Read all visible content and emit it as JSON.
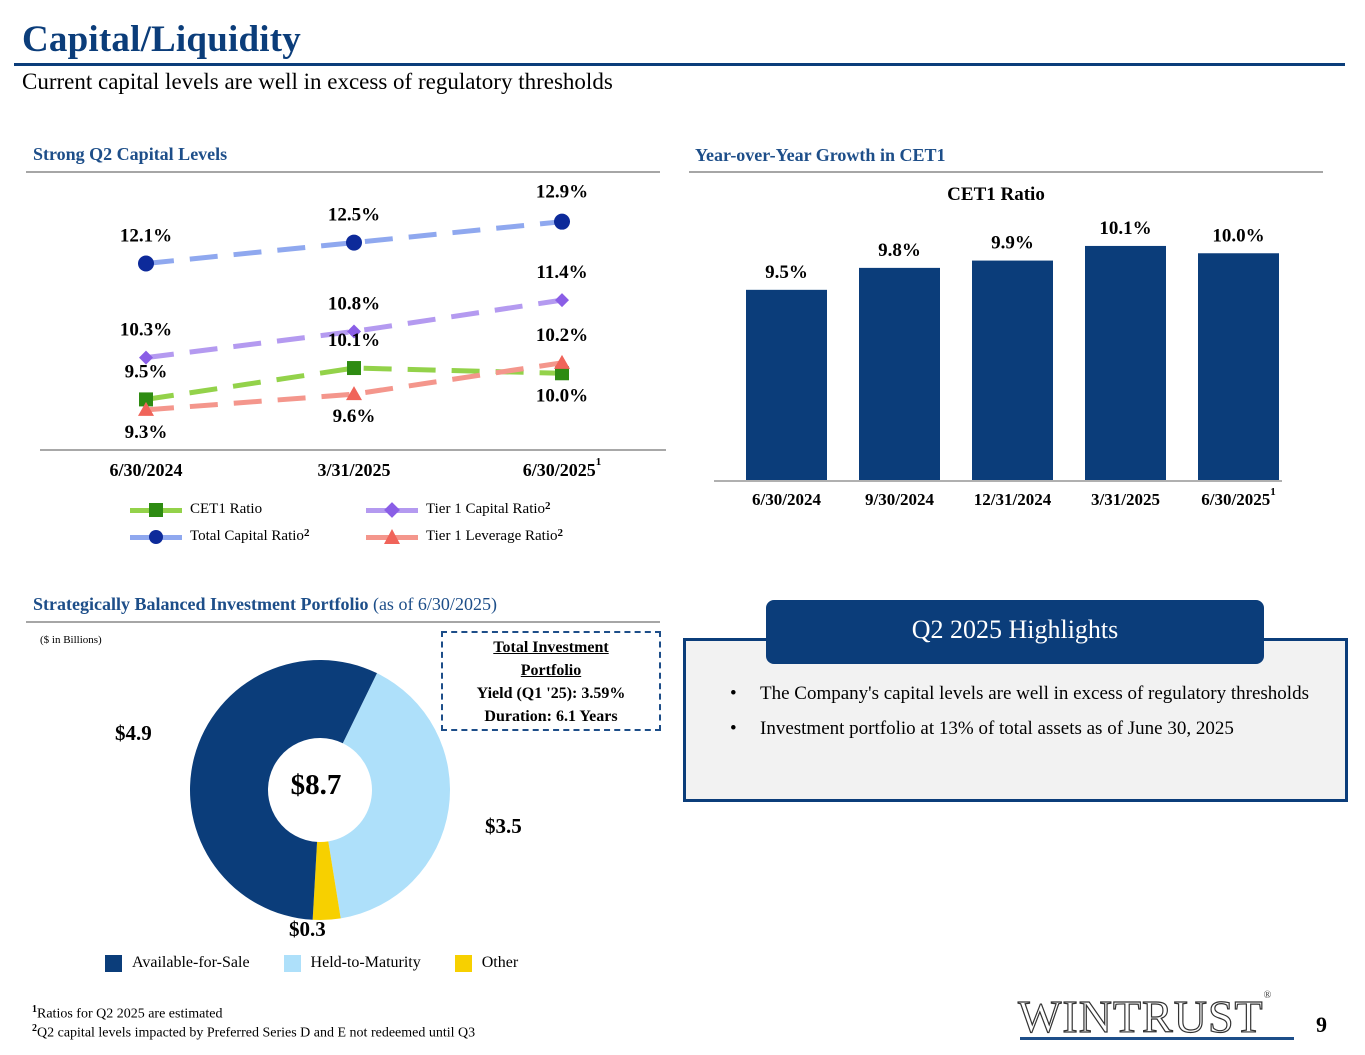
{
  "header": {
    "title": "Capital/Liquidity",
    "subtitle": "Current capital levels are well in excess of regulatory thresholds"
  },
  "sections": {
    "capital_levels": "Strong Q2 Capital Levels",
    "cet1_growth": "Year-over-Year Growth in CET1",
    "portfolio_bold": "Strategically Balanced Investment Portfolio",
    "portfolio_plain": " (as of 6/30/2025)"
  },
  "chart_data": [
    {
      "type": "line",
      "title": "Strong Q2 Capital Levels",
      "categories": [
        "6/30/2024",
        "3/31/2025",
        "6/30/2025"
      ],
      "category_superscripts": [
        "",
        "",
        "1"
      ],
      "series": [
        {
          "name": "Total Capital Ratio",
          "superscript": "2",
          "values": [
            12.1,
            12.5,
            12.9
          ],
          "labels": [
            "12.1%",
            "12.5%",
            "12.9%"
          ],
          "color": "#8fa8ef",
          "marker_color": "#0d2a9a",
          "marker": "circle"
        },
        {
          "name": "Tier 1 Capital Ratio",
          "superscript": "2",
          "values": [
            10.3,
            10.8,
            11.4
          ],
          "labels": [
            "10.3%",
            "10.8%",
            "11.4%"
          ],
          "color": "#b49af0",
          "marker_color": "#8a5ee6",
          "marker": "diamond"
        },
        {
          "name": "CET1 Ratio",
          "superscript": "",
          "values": [
            9.5,
            10.1,
            10.0
          ],
          "labels": [
            "9.5%",
            "10.1%",
            "10.0%"
          ],
          "color": "#93d24a",
          "marker_color": "#2e8b12",
          "marker": "square"
        },
        {
          "name": "Tier 1 Leverage Ratio",
          "superscript": "2",
          "values": [
            9.3,
            9.6,
            10.2
          ],
          "labels": [
            "9.3%",
            "9.6%",
            "10.2%"
          ],
          "color": "#f4968c",
          "marker_color": "#f0645a",
          "marker": "triangle"
        }
      ],
      "legend_order": [
        "CET1 Ratio",
        "Tier 1 Capital Ratio",
        "Total Capital Ratio",
        "Tier 1 Leverage Ratio"
      ],
      "legend_position": "bottom",
      "xlabel": "",
      "ylabel": "",
      "ylim": [
        8.8,
        13.2
      ],
      "grid": false
    },
    {
      "type": "bar",
      "title": "CET1 Ratio",
      "categories": [
        "6/30/2024",
        "9/30/2024",
        "12/31/2024",
        "3/31/2025",
        "6/30/2025"
      ],
      "category_superscripts": [
        "",
        "",
        "",
        "",
        "1"
      ],
      "values": [
        9.5,
        9.8,
        9.9,
        10.1,
        10.0
      ],
      "labels": [
        "9.5%",
        "9.8%",
        "9.9%",
        "10.1%",
        "10.0%"
      ],
      "color": "#0b3d7a",
      "xlabel": "",
      "ylabel": "",
      "ylim": [
        6.9,
        10.4
      ],
      "grid": false
    },
    {
      "type": "pie",
      "title": "Strategically Balanced Investment Portfolio",
      "unit_note": "($ in Billions)",
      "center_label": "$8.7",
      "total": 8.7,
      "slices": [
        {
          "name": "Available-for-Sale",
          "value": 4.9,
          "label": "$4.9",
          "color": "#0b3d7a"
        },
        {
          "name": "Held-to-Maturity",
          "value": 3.5,
          "label": "$3.5",
          "color": "#aee0fa"
        },
        {
          "name": "Other",
          "value": 0.3,
          "label": "$0.3",
          "color": "#f7d000"
        }
      ],
      "legend_position": "bottom"
    }
  ],
  "investment_box": {
    "line1": "Total Investment ",
    "line2": "Portfolio",
    "line3": "Yield (Q1 '25): 3.59%",
    "line4": "Duration: 6.1 Years"
  },
  "highlights": {
    "title": "Q2 2025 Highlights",
    "bullet_char": "•",
    "items": [
      "The Company's capital levels are well in excess of regulatory thresholds",
      "Investment portfolio at 13% of total assets as of June 30, 2025"
    ]
  },
  "footnotes": [
    {
      "mark": "1",
      "text": "Ratios for Q2 2025 are estimated"
    },
    {
      "mark": "2",
      "text": "Q2 capital levels impacted by Preferred Series D and E not redeemed until Q3"
    }
  ],
  "footer": {
    "logo": "WINTRUST",
    "logo_mark": "®",
    "page_number": "9"
  }
}
